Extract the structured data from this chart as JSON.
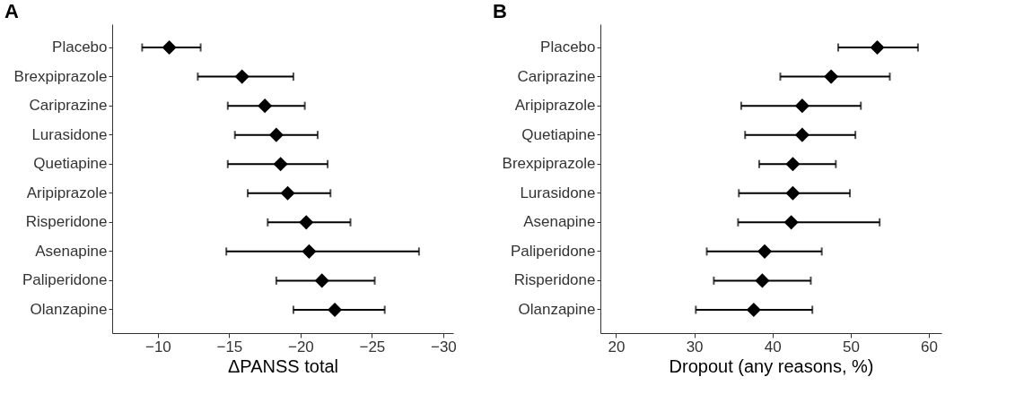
{
  "chart_data": [
    {
      "type": "scatter",
      "orientation": "horizontal",
      "title": "A",
      "xlabel": "ΔPANSS total",
      "marker": "diamond",
      "color": "#000000",
      "grid": false,
      "categories": [
        "Placebo",
        "Brexpiprazole",
        "Cariprazine",
        "Lurasidone",
        "Quetiapine",
        "Aripiprazole",
        "Risperidone",
        "Asenapine",
        "Paliperidone",
        "Olanzapine"
      ],
      "values": [
        -10.8,
        -15.9,
        -17.5,
        -18.3,
        -18.6,
        -19.1,
        -20.4,
        -20.6,
        -21.5,
        -22.4
      ],
      "errors": [
        [
          -8.9,
          -13.0
        ],
        [
          -12.8,
          -19.5
        ],
        [
          -14.9,
          -20.3
        ],
        [
          -15.4,
          -21.2
        ],
        [
          -14.9,
          -21.9
        ],
        [
          -16.3,
          -22.1
        ],
        [
          -17.7,
          -23.5
        ],
        [
          -14.8,
          -28.3
        ],
        [
          -18.3,
          -25.2
        ],
        [
          -19.5,
          -25.9
        ]
      ],
      "xlim": [
        -6.8,
        -30.7
      ],
      "xticks": [
        -10,
        -15,
        -20,
        -25,
        -30
      ]
    },
    {
      "type": "scatter",
      "orientation": "horizontal",
      "title": "B",
      "xlabel": "Dropout (any reasons, %)",
      "marker": "diamond",
      "color": "#000000",
      "grid": false,
      "categories": [
        "Placebo",
        "Cariprazine",
        "Aripiprazole",
        "Quetiapine",
        "Brexpiprazole",
        "Lurasidone",
        "Asenapine",
        "Paliperidone",
        "Risperidone",
        "Olanzapine"
      ],
      "values": [
        53.4,
        47.5,
        43.8,
        43.8,
        42.6,
        42.6,
        42.4,
        39.0,
        38.7,
        37.6
      ],
      "errors": [
        [
          48.4,
          58.6
        ],
        [
          41.0,
          55.0
        ],
        [
          36.0,
          51.3
        ],
        [
          36.5,
          50.6
        ],
        [
          38.3,
          48.1
        ],
        [
          35.7,
          49.9
        ],
        [
          35.6,
          53.7
        ],
        [
          31.6,
          46.3
        ],
        [
          32.5,
          44.9
        ],
        [
          30.2,
          45.1
        ]
      ],
      "xlim": [
        18.0,
        61.6
      ],
      "xticks": [
        20,
        30,
        40,
        50,
        60
      ]
    }
  ]
}
